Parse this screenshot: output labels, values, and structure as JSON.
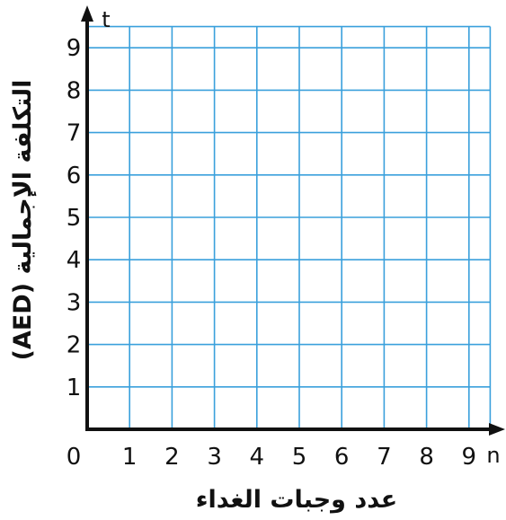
{
  "chart_data": {
    "type": "scatter",
    "title": "",
    "x_variable": "n",
    "y_variable": "t",
    "xlabel": "عدد وجبات الغداء",
    "ylabel": "التكلفة الإجمالية (AED)",
    "origin_label": "0",
    "xlim": [
      0,
      9.5
    ],
    "ylim": [
      0,
      9.5
    ],
    "x_ticks": [
      "1",
      "2",
      "3",
      "4",
      "5",
      "6",
      "7",
      "8",
      "9"
    ],
    "y_ticks": [
      "1",
      "2",
      "3",
      "4",
      "5",
      "6",
      "7",
      "8",
      "9"
    ],
    "grid": true,
    "series": [],
    "colors": {
      "grid": "#3aa0dc",
      "axis": "#111111",
      "text": "#111111"
    }
  }
}
